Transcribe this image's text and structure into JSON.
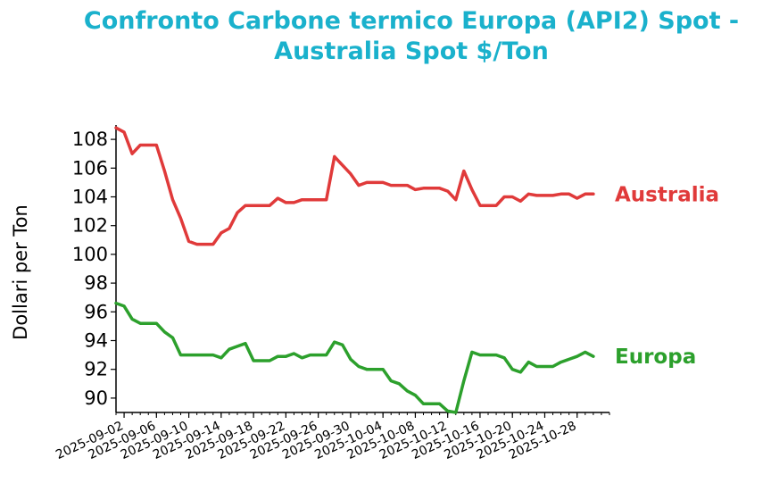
{
  "chart_data": {
    "type": "line",
    "title_lines": [
      "Confronto Carbone termico Europa (API2) Spot -",
      "Australia Spot $/Ton"
    ],
    "ylabel": "Dollari per Ton",
    "xlabel": "",
    "ylim": [
      89,
      109
    ],
    "yticks": [
      90,
      92,
      94,
      96,
      98,
      100,
      102,
      104,
      106,
      108
    ],
    "xlim": [
      "2025-09-01",
      "2025-11-01"
    ],
    "xticks": [
      "2025-09-02",
      "2025-09-06",
      "2025-09-10",
      "2025-09-14",
      "2025-09-18",
      "2025-09-22",
      "2025-09-26",
      "2025-09-30",
      "2025-10-04",
      "2025-10-08",
      "2025-10-12",
      "2025-10-16",
      "2025-10-20",
      "2025-10-24",
      "2025-10-28"
    ],
    "grid": false,
    "colors": {
      "title": "#1ab1cc",
      "australia": "#e03a3a",
      "europa": "#2ca02c",
      "axis": "#000000"
    },
    "series": [
      {
        "name": "Australia",
        "color": "#e03a3a",
        "points": [
          [
            "2025-09-01",
            108.8
          ],
          [
            "2025-09-02",
            108.5
          ],
          [
            "2025-09-03",
            107.0
          ],
          [
            "2025-09-04",
            107.6
          ],
          [
            "2025-09-05",
            107.6
          ],
          [
            "2025-09-06",
            107.6
          ],
          [
            "2025-09-07",
            105.8
          ],
          [
            "2025-09-08",
            103.8
          ],
          [
            "2025-09-09",
            102.5
          ],
          [
            "2025-09-10",
            100.9
          ],
          [
            "2025-09-11",
            100.7
          ],
          [
            "2025-09-12",
            100.7
          ],
          [
            "2025-09-13",
            100.7
          ],
          [
            "2025-09-14",
            101.5
          ],
          [
            "2025-09-15",
            101.8
          ],
          [
            "2025-09-16",
            102.9
          ],
          [
            "2025-09-17",
            103.4
          ],
          [
            "2025-09-18",
            103.4
          ],
          [
            "2025-09-19",
            103.4
          ],
          [
            "2025-09-20",
            103.4
          ],
          [
            "2025-09-21",
            103.9
          ],
          [
            "2025-09-22",
            103.6
          ],
          [
            "2025-09-23",
            103.6
          ],
          [
            "2025-09-24",
            103.8
          ],
          [
            "2025-09-25",
            103.8
          ],
          [
            "2025-09-26",
            103.8
          ],
          [
            "2025-09-27",
            103.8
          ],
          [
            "2025-09-28",
            106.8
          ],
          [
            "2025-09-29",
            106.2
          ],
          [
            "2025-09-30",
            105.6
          ],
          [
            "2025-10-01",
            104.8
          ],
          [
            "2025-10-02",
            105.0
          ],
          [
            "2025-10-03",
            105.0
          ],
          [
            "2025-10-04",
            105.0
          ],
          [
            "2025-10-05",
            104.8
          ],
          [
            "2025-10-06",
            104.8
          ],
          [
            "2025-10-07",
            104.8
          ],
          [
            "2025-10-08",
            104.5
          ],
          [
            "2025-10-09",
            104.6
          ],
          [
            "2025-10-10",
            104.6
          ],
          [
            "2025-10-11",
            104.6
          ],
          [
            "2025-10-12",
            104.4
          ],
          [
            "2025-10-13",
            103.8
          ],
          [
            "2025-10-14",
            105.8
          ],
          [
            "2025-10-15",
            104.5
          ],
          [
            "2025-10-16",
            103.4
          ],
          [
            "2025-10-17",
            103.4
          ],
          [
            "2025-10-18",
            103.4
          ],
          [
            "2025-10-19",
            104.0
          ],
          [
            "2025-10-20",
            104.0
          ],
          [
            "2025-10-21",
            103.7
          ],
          [
            "2025-10-22",
            104.2
          ],
          [
            "2025-10-23",
            104.1
          ],
          [
            "2025-10-24",
            104.1
          ],
          [
            "2025-10-25",
            104.1
          ],
          [
            "2025-10-26",
            104.2
          ],
          [
            "2025-10-27",
            104.2
          ],
          [
            "2025-10-28",
            103.9
          ],
          [
            "2025-10-29",
            104.2
          ],
          [
            "2025-10-30",
            104.2
          ]
        ]
      },
      {
        "name": "Europa",
        "color": "#2ca02c",
        "points": [
          [
            "2025-09-01",
            96.6
          ],
          [
            "2025-09-02",
            96.4
          ],
          [
            "2025-09-03",
            95.5
          ],
          [
            "2025-09-04",
            95.2
          ],
          [
            "2025-09-05",
            95.2
          ],
          [
            "2025-09-06",
            95.2
          ],
          [
            "2025-09-07",
            94.6
          ],
          [
            "2025-09-08",
            94.2
          ],
          [
            "2025-09-09",
            93.0
          ],
          [
            "2025-09-10",
            93.0
          ],
          [
            "2025-09-11",
            93.0
          ],
          [
            "2025-09-12",
            93.0
          ],
          [
            "2025-09-13",
            93.0
          ],
          [
            "2025-09-14",
            92.8
          ],
          [
            "2025-09-15",
            93.4
          ],
          [
            "2025-09-16",
            93.6
          ],
          [
            "2025-09-17",
            93.8
          ],
          [
            "2025-09-18",
            92.6
          ],
          [
            "2025-09-19",
            92.6
          ],
          [
            "2025-09-20",
            92.6
          ],
          [
            "2025-09-21",
            92.9
          ],
          [
            "2025-09-22",
            92.9
          ],
          [
            "2025-09-23",
            93.1
          ],
          [
            "2025-09-24",
            92.8
          ],
          [
            "2025-09-25",
            93.0
          ],
          [
            "2025-09-26",
            93.0
          ],
          [
            "2025-09-27",
            93.0
          ],
          [
            "2025-09-28",
            93.9
          ],
          [
            "2025-09-29",
            93.7
          ],
          [
            "2025-09-30",
            92.7
          ],
          [
            "2025-10-01",
            92.2
          ],
          [
            "2025-10-02",
            92.0
          ],
          [
            "2025-10-03",
            92.0
          ],
          [
            "2025-10-04",
            92.0
          ],
          [
            "2025-10-05",
            91.2
          ],
          [
            "2025-10-06",
            91.0
          ],
          [
            "2025-10-07",
            90.5
          ],
          [
            "2025-10-08",
            90.2
          ],
          [
            "2025-10-09",
            89.6
          ],
          [
            "2025-10-10",
            89.6
          ],
          [
            "2025-10-11",
            89.6
          ],
          [
            "2025-10-12",
            89.1
          ],
          [
            "2025-10-13",
            89.0
          ],
          [
            "2025-10-14",
            91.2
          ],
          [
            "2025-10-15",
            93.2
          ],
          [
            "2025-10-16",
            93.0
          ],
          [
            "2025-10-17",
            93.0
          ],
          [
            "2025-10-18",
            93.0
          ],
          [
            "2025-10-19",
            92.8
          ],
          [
            "2025-10-20",
            92.0
          ],
          [
            "2025-10-21",
            91.8
          ],
          [
            "2025-10-22",
            92.5
          ],
          [
            "2025-10-23",
            92.2
          ],
          [
            "2025-10-24",
            92.2
          ],
          [
            "2025-10-25",
            92.2
          ],
          [
            "2025-10-26",
            92.5
          ],
          [
            "2025-10-27",
            92.7
          ],
          [
            "2025-10-28",
            92.9
          ],
          [
            "2025-10-29",
            93.2
          ],
          [
            "2025-10-30",
            92.9
          ]
        ]
      }
    ]
  }
}
